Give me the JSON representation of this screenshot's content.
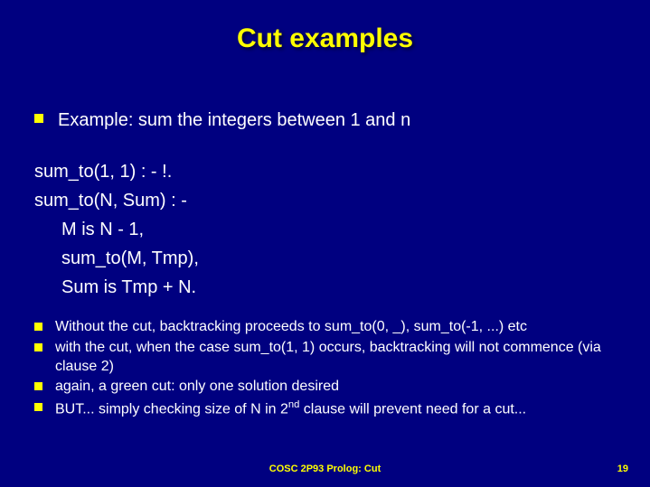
{
  "title": "Cut examples",
  "bullet1": "Example: sum the integers between 1 and n",
  "code": {
    "l1": "sum_to(1, 1) : - !.",
    "l2": "sum_to(N, Sum) : -",
    "l3": "M is N - 1,",
    "l4": "sum_to(M, Tmp),",
    "l5": "Sum is Tmp + N."
  },
  "bullets2": {
    "b1": "Without the cut, backtracking proceeds to sum_to(0, _), sum_to(-1, ...) etc",
    "b2": "with the cut, when the case sum_to(1, 1) occurs, backtracking will not commence (via clause 2)",
    "b3": "again, a green cut: only one solution desired",
    "b4_pre": "BUT... simply checking size of N in 2",
    "b4_sup": "nd",
    "b4_post": " clause will prevent need for a cut..."
  },
  "footer": "COSC 2P93 Prolog: Cut",
  "page": "19",
  "colors": {
    "background": "#000080",
    "title": "#ffff00",
    "text": "#ffffff",
    "bullet": "#ffff00",
    "footer": "#ffff00"
  }
}
